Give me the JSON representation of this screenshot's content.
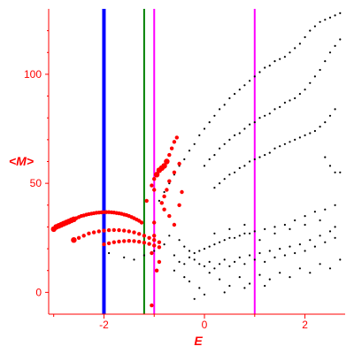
{
  "chart_data": {
    "type": "scatter",
    "title": "",
    "xlabel": "E",
    "ylabel": "<M>",
    "xlim": [
      -3.1,
      2.8
    ],
    "ylim": [
      -10,
      130
    ],
    "xticks": [
      {
        "value": -2,
        "label": "-2"
      },
      {
        "value": 0,
        "label": "0"
      },
      {
        "value": 2,
        "label": "2"
      }
    ],
    "yticks": [
      {
        "value": 0,
        "label": "0"
      },
      {
        "value": 50,
        "label": "50"
      },
      {
        "value": 100,
        "label": "100"
      }
    ],
    "colors": {
      "axis": "#ff0000",
      "black_points": "#000000",
      "red_points": "#ff0000",
      "line_blue": "#0000ff",
      "line_green": "#008000",
      "line_magenta": "#ff00ff"
    },
    "vertical_lines": [
      {
        "x": -2.0,
        "color": "#0000ff",
        "weight": "thick"
      },
      {
        "x": -1.2,
        "color": "#008000",
        "weight": "thin"
      },
      {
        "x": -1.0,
        "color": "#ff00ff",
        "weight": "thin"
      },
      {
        "x": 1.0,
        "color": "#ff00ff",
        "weight": "thin"
      }
    ],
    "series": [
      {
        "color": "#000000",
        "points": [
          [
            -0.9,
            42
          ],
          [
            -0.8,
            46
          ],
          [
            -0.7,
            50
          ],
          [
            -0.6,
            54
          ],
          [
            -0.5,
            58
          ],
          [
            -0.4,
            61
          ],
          [
            -0.3,
            65
          ],
          [
            -0.2,
            68
          ],
          [
            -0.1,
            72
          ],
          [
            0.0,
            75
          ],
          [
            0.1,
            78
          ],
          [
            0.2,
            81
          ],
          [
            0.3,
            84
          ],
          [
            0.4,
            86
          ],
          [
            0.5,
            89
          ],
          [
            0.6,
            91
          ],
          [
            0.7,
            93
          ],
          [
            0.8,
            95
          ],
          [
            0.9,
            97
          ],
          [
            1.0,
            99
          ],
          [
            1.1,
            101
          ],
          [
            1.2,
            103
          ],
          [
            1.3,
            104
          ],
          [
            1.4,
            106
          ],
          [
            1.5,
            107
          ],
          [
            1.6,
            108
          ],
          [
            1.7,
            110
          ],
          [
            1.8,
            112
          ],
          [
            1.9,
            114
          ],
          [
            2.0,
            117
          ],
          [
            2.1,
            120
          ],
          [
            2.2,
            122
          ],
          [
            2.3,
            124
          ],
          [
            2.4,
            125
          ],
          [
            2.5,
            126
          ],
          [
            2.6,
            127
          ],
          [
            2.7,
            128
          ],
          [
            0.0,
            58
          ],
          [
            0.1,
            61
          ],
          [
            0.2,
            63
          ],
          [
            0.3,
            66
          ],
          [
            0.4,
            68
          ],
          [
            0.5,
            70
          ],
          [
            0.6,
            72
          ],
          [
            0.7,
            73
          ],
          [
            0.8,
            75
          ],
          [
            0.9,
            77
          ],
          [
            1.0,
            78
          ],
          [
            1.1,
            80
          ],
          [
            1.2,
            81
          ],
          [
            1.3,
            82
          ],
          [
            1.4,
            84
          ],
          [
            1.5,
            85
          ],
          [
            1.6,
            87
          ],
          [
            1.7,
            88
          ],
          [
            1.8,
            89
          ],
          [
            1.9,
            91
          ],
          [
            2.0,
            93
          ],
          [
            2.1,
            96
          ],
          [
            2.2,
            99
          ],
          [
            2.3,
            102
          ],
          [
            2.4,
            106
          ],
          [
            2.5,
            110
          ],
          [
            2.6,
            113
          ],
          [
            2.7,
            116
          ],
          [
            0.2,
            48
          ],
          [
            0.3,
            50
          ],
          [
            0.4,
            52
          ],
          [
            0.5,
            54
          ],
          [
            0.6,
            55
          ],
          [
            0.7,
            57
          ],
          [
            0.8,
            58
          ],
          [
            0.9,
            60
          ],
          [
            1.0,
            61
          ],
          [
            1.1,
            62
          ],
          [
            1.2,
            63
          ],
          [
            1.3,
            64
          ],
          [
            1.4,
            66
          ],
          [
            1.5,
            67
          ],
          [
            1.6,
            68
          ],
          [
            1.7,
            69
          ],
          [
            1.8,
            70
          ],
          [
            1.9,
            71
          ],
          [
            2.0,
            72
          ],
          [
            2.1,
            73
          ],
          [
            2.2,
            74
          ],
          [
            2.3,
            76
          ],
          [
            2.4,
            78
          ],
          [
            2.5,
            81
          ],
          [
            2.6,
            84
          ],
          [
            2.4,
            62
          ],
          [
            2.5,
            58
          ],
          [
            2.6,
            55
          ],
          [
            2.7,
            55
          ],
          [
            -0.7,
            26
          ],
          [
            -0.5,
            24
          ],
          [
            -0.4,
            21
          ],
          [
            -0.3,
            19
          ],
          [
            -0.2,
            18
          ],
          [
            -0.1,
            19
          ],
          [
            0.0,
            20
          ],
          [
            0.1,
            21
          ],
          [
            0.2,
            22
          ],
          [
            0.3,
            23
          ],
          [
            0.4,
            24
          ],
          [
            0.5,
            25
          ],
          [
            0.6,
            25
          ],
          [
            0.7,
            26
          ],
          [
            0.8,
            27
          ],
          [
            0.9,
            27
          ],
          [
            1.0,
            28
          ],
          [
            1.2,
            29
          ],
          [
            1.4,
            30
          ],
          [
            1.6,
            31
          ],
          [
            1.8,
            33
          ],
          [
            2.0,
            35
          ],
          [
            2.2,
            37
          ],
          [
            2.4,
            38
          ],
          [
            2.6,
            40
          ],
          [
            -1.9,
            18
          ],
          [
            -1.6,
            16
          ],
          [
            -1.4,
            15
          ],
          [
            -1.2,
            17
          ],
          [
            -1.0,
            19
          ],
          [
            -0.9,
            21
          ],
          [
            -0.8,
            22
          ],
          [
            -0.6,
            17
          ],
          [
            -0.5,
            14
          ],
          [
            -0.4,
            13
          ],
          [
            -0.3,
            16
          ],
          [
            -0.2,
            15
          ],
          [
            -0.1,
            13
          ],
          [
            0.0,
            12
          ],
          [
            0.1,
            14
          ],
          [
            0.2,
            11
          ],
          [
            0.3,
            13
          ],
          [
            0.4,
            15
          ],
          [
            0.5,
            12
          ],
          [
            0.6,
            14
          ],
          [
            0.7,
            16
          ],
          [
            0.8,
            13
          ],
          [
            0.9,
            17
          ],
          [
            1.0,
            15
          ],
          [
            1.1,
            18
          ],
          [
            1.2,
            14
          ],
          [
            1.3,
            19
          ],
          [
            1.4,
            16
          ],
          [
            1.5,
            20
          ],
          [
            1.6,
            17
          ],
          [
            1.7,
            21
          ],
          [
            1.8,
            18
          ],
          [
            1.9,
            22
          ],
          [
            2.0,
            19
          ],
          [
            2.1,
            24
          ],
          [
            2.2,
            21
          ],
          [
            2.3,
            26
          ],
          [
            2.4,
            23
          ],
          [
            2.5,
            28
          ],
          [
            2.6,
            25
          ],
          [
            -0.6,
            10
          ],
          [
            -0.4,
            7
          ],
          [
            -0.3,
            5
          ],
          [
            -0.1,
            2
          ],
          [
            0.1,
            9
          ],
          [
            0.3,
            6
          ],
          [
            0.5,
            3
          ],
          [
            0.7,
            7
          ],
          [
            0.9,
            4
          ],
          [
            1.1,
            8
          ],
          [
            1.3,
            6
          ],
          [
            1.5,
            9
          ],
          [
            1.7,
            7
          ],
          [
            1.9,
            11
          ],
          [
            2.1,
            9
          ],
          [
            2.3,
            13
          ],
          [
            2.5,
            11
          ],
          [
            2.7,
            15
          ],
          [
            0.2,
            27
          ],
          [
            0.5,
            29
          ],
          [
            0.8,
            31
          ],
          [
            1.1,
            24
          ],
          [
            1.4,
            27
          ],
          [
            1.7,
            29
          ],
          [
            2.0,
            31
          ],
          [
            2.3,
            33
          ],
          [
            2.6,
            30
          ],
          [
            -0.2,
            -3
          ],
          [
            0.0,
            -1
          ],
          [
            0.4,
            0
          ],
          [
            0.8,
            2
          ],
          [
            1.2,
            3
          ]
        ]
      },
      {
        "color": "#ff0000",
        "points": [
          [
            -3.0,
            29
          ],
          [
            -2.95,
            30
          ],
          [
            -2.9,
            30.5
          ],
          [
            -2.85,
            31
          ],
          [
            -2.8,
            31.5
          ],
          [
            -2.75,
            32
          ],
          [
            -2.7,
            32.5
          ],
          [
            -2.65,
            33
          ],
          [
            -2.6,
            33.5
          ],
          [
            -2.55,
            34
          ],
          [
            -2.5,
            34.5
          ],
          [
            -2.45,
            35
          ],
          [
            -2.4,
            35.3
          ],
          [
            -2.35,
            35.6
          ],
          [
            -2.3,
            35.9
          ],
          [
            -2.25,
            36.1
          ],
          [
            -2.2,
            36.3
          ],
          [
            -2.15,
            36.5
          ],
          [
            -2.1,
            36.6
          ],
          [
            -2.05,
            36.7
          ],
          [
            -2.0,
            36.8
          ],
          [
            -1.95,
            36.8
          ],
          [
            -1.9,
            36.8
          ],
          [
            -1.85,
            36.7
          ],
          [
            -1.8,
            36.6
          ],
          [
            -1.75,
            36.4
          ],
          [
            -1.7,
            36.2
          ],
          [
            -1.65,
            36.0
          ],
          [
            -1.6,
            35.7
          ],
          [
            -1.55,
            35.4
          ],
          [
            -1.5,
            35.0
          ],
          [
            -1.45,
            34.5
          ],
          [
            -1.4,
            34.0
          ],
          [
            -1.35,
            33.4
          ],
          [
            -1.3,
            32.8
          ],
          [
            -1.25,
            32.0
          ],
          [
            -2.6,
            24
          ],
          [
            -2.5,
            25
          ],
          [
            -2.4,
            26
          ],
          [
            -2.3,
            27
          ],
          [
            -2.2,
            27.5
          ],
          [
            -2.1,
            28
          ],
          [
            -2.0,
            28.3
          ],
          [
            -1.9,
            28.5
          ],
          [
            -1.8,
            28.6
          ],
          [
            -1.7,
            28.5
          ],
          [
            -1.6,
            28.3
          ],
          [
            -1.5,
            28.0
          ],
          [
            -1.4,
            27.5
          ],
          [
            -1.3,
            26.8
          ],
          [
            -1.2,
            26.0
          ],
          [
            -1.1,
            25.0
          ],
          [
            -1.0,
            24.0
          ],
          [
            -0.9,
            23.0
          ],
          [
            -2.0,
            22
          ],
          [
            -1.9,
            22.5
          ],
          [
            -1.8,
            23
          ],
          [
            -1.7,
            23.3
          ],
          [
            -1.6,
            23.5
          ],
          [
            -1.5,
            23.6
          ],
          [
            -1.4,
            23.5
          ],
          [
            -1.3,
            23.2
          ],
          [
            -1.2,
            22.8
          ],
          [
            -1.1,
            22.2
          ],
          [
            -1.0,
            21.5
          ],
          [
            -0.9,
            20.7
          ],
          [
            -1.0,
            52
          ],
          [
            -0.95,
            54
          ],
          [
            -0.9,
            56
          ],
          [
            -0.85,
            57
          ],
          [
            -0.8,
            58
          ],
          [
            -0.75,
            60
          ],
          [
            -0.7,
            63
          ],
          [
            -0.65,
            66
          ],
          [
            -0.6,
            69
          ],
          [
            -0.55,
            71
          ],
          [
            -0.8,
            44
          ],
          [
            -0.75,
            47
          ],
          [
            -0.7,
            51
          ],
          [
            -0.6,
            55
          ],
          [
            -0.5,
            59
          ],
          [
            -1.05,
            49
          ],
          [
            -1.0,
            47
          ],
          [
            -0.85,
            41
          ],
          [
            -0.8,
            38
          ],
          [
            -0.7,
            35
          ],
          [
            -0.6,
            31
          ],
          [
            -0.5,
            40
          ],
          [
            -0.45,
            46
          ],
          [
            -1.15,
            42
          ],
          [
            -1.0,
            32
          ],
          [
            -1.0,
            26
          ],
          [
            -1.05,
            18
          ],
          [
            -0.9,
            14
          ],
          [
            -0.95,
            10
          ],
          [
            -1.05,
            -6
          ]
        ]
      }
    ]
  }
}
